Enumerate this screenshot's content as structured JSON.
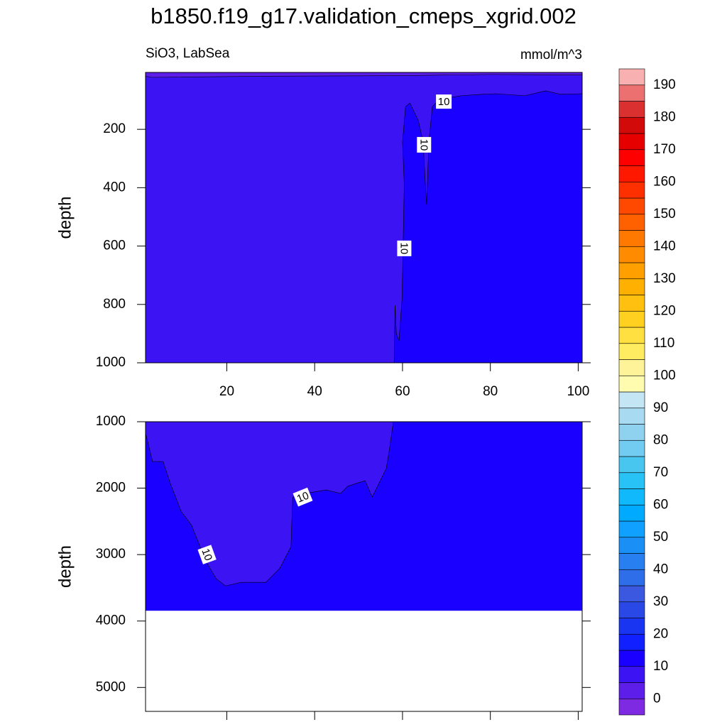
{
  "chart_data": {
    "type": "contour",
    "title": "b1850.f19_g17.validation_cmeps_xgrid.002",
    "subtitle_left": "SiO3, LabSea",
    "subtitle_right": "mmol/m^3",
    "panels": [
      {
        "ylabel": "depth",
        "y_reversed": true,
        "xlim": [
          1.5,
          100.9
        ],
        "ylim": [
          5,
          1000
        ],
        "xticks": [
          20,
          40,
          60,
          80,
          100
        ],
        "yticks": [
          200,
          400,
          600,
          800,
          1000
        ],
        "background_range": [
          5,
          10
        ],
        "data_bottom": 1000,
        "regions": [
          {
            "range": [
              0,
              5
            ],
            "x": [
              1.5,
              100.9,
              100.9,
              80,
              60,
              30,
              3,
              1.5
            ],
            "y": [
              5,
              5,
              14,
              12,
              16,
              18,
              22,
              18
            ]
          },
          {
            "range": [
              10,
              15
            ],
            "x": [
              58.1,
              58.3,
              58.6,
              59.2,
              59.9,
              60.4,
              60.0,
              60.7,
              61.7,
              63.6,
              64.7,
              65.2,
              65.5,
              66.0,
              66.8,
              68.4,
              73.3,
              78.1,
              81.3,
              87.8,
              92.6,
              95.9,
              100.9,
              100.9
            ],
            "y": [
              1000,
              803,
              900,
              925,
              779,
              389,
              243,
              122,
              110,
              170,
              243,
              389,
              458,
              243,
              122,
              97,
              85,
              80,
              78,
              85,
              68,
              80,
              78,
              1000
            ]
          }
        ],
        "contour_labels": [
          {
            "text": "10",
            "x": 69.4,
            "y": 105
          },
          {
            "text": "10",
            "x": 64.9,
            "y": 253
          },
          {
            "text": "10",
            "x": 60.4,
            "y": 608
          }
        ]
      },
      {
        "ylabel": "depth",
        "y_reversed": true,
        "xlim": [
          1.5,
          100.9
        ],
        "ylim": [
          1000,
          5360
        ],
        "yticks": [
          1000,
          2000,
          3000,
          4000,
          5000
        ],
        "background_range": [
          10,
          15
        ],
        "data_bottom": 3845,
        "regions": [
          {
            "range": [
              5,
              10
            ],
            "x": [
              1.5,
              1.5,
              3.1,
              5.5,
              7.1,
              9.6,
              12.0,
              15.2,
              17.6,
              19.7,
              23.3,
              28.9,
              32.1,
              34.6,
              35.0,
              37.8,
              42.6,
              45.9,
              47.5,
              49.9,
              51.5,
              53.1,
              56.3,
              57.1,
              57.9
            ],
            "y": [
              1000,
              1171,
              1599,
              1599,
              1920,
              2348,
              2561,
              3096,
              3364,
              3471,
              3417,
              3417,
              3203,
              2882,
              2134,
              2080,
              2027,
              2080,
              1973,
              1920,
              1888,
              2134,
              1706,
              1385,
              1000
            ]
          }
        ],
        "contour_labels": [
          {
            "text": "10",
            "x": 37.3,
            "y": 2134
          },
          {
            "text": "10",
            "x": 15.5,
            "y": 3000
          }
        ]
      }
    ],
    "colorbar": {
      "levels": [
        -5,
        0,
        5,
        10,
        15,
        20,
        25,
        30,
        35,
        40,
        45,
        50,
        55,
        60,
        65,
        70,
        75,
        80,
        85,
        90,
        95,
        100,
        105,
        110,
        115,
        120,
        125,
        130,
        135,
        140,
        145,
        150,
        155,
        160,
        165,
        170,
        175,
        180,
        185,
        190,
        195
      ],
      "colors": [
        "#7d2ae2",
        "#5c1ee8",
        "#3c14f4",
        "#1a00ff",
        "#1020ff",
        "#1a35f2",
        "#2a48e6",
        "#3a58e0",
        "#2e6ee8",
        "#2880f0",
        "#1a90f6",
        "#10a0ff",
        "#00abff",
        "#10b8fc",
        "#28c2f6",
        "#48c6f0",
        "#72cbf0",
        "#8fd2f0",
        "#a8dbf2",
        "#c4e6f4",
        "#fffcb0",
        "#fff39a",
        "#ffec60",
        "#ffe040",
        "#ffd020",
        "#ffc010",
        "#ffb000",
        "#ffa000",
        "#ff8c00",
        "#ff7800",
        "#ff6000",
        "#ff4800",
        "#ff3000",
        "#ff1800",
        "#ff0000",
        "#e60000",
        "#d20a0a",
        "#da3030",
        "#ec7070",
        "#f8b0b0"
      ],
      "ticks": [
        0,
        10,
        20,
        30,
        40,
        50,
        60,
        70,
        80,
        90,
        100,
        110,
        120,
        130,
        140,
        150,
        160,
        170,
        180,
        190
      ]
    }
  }
}
